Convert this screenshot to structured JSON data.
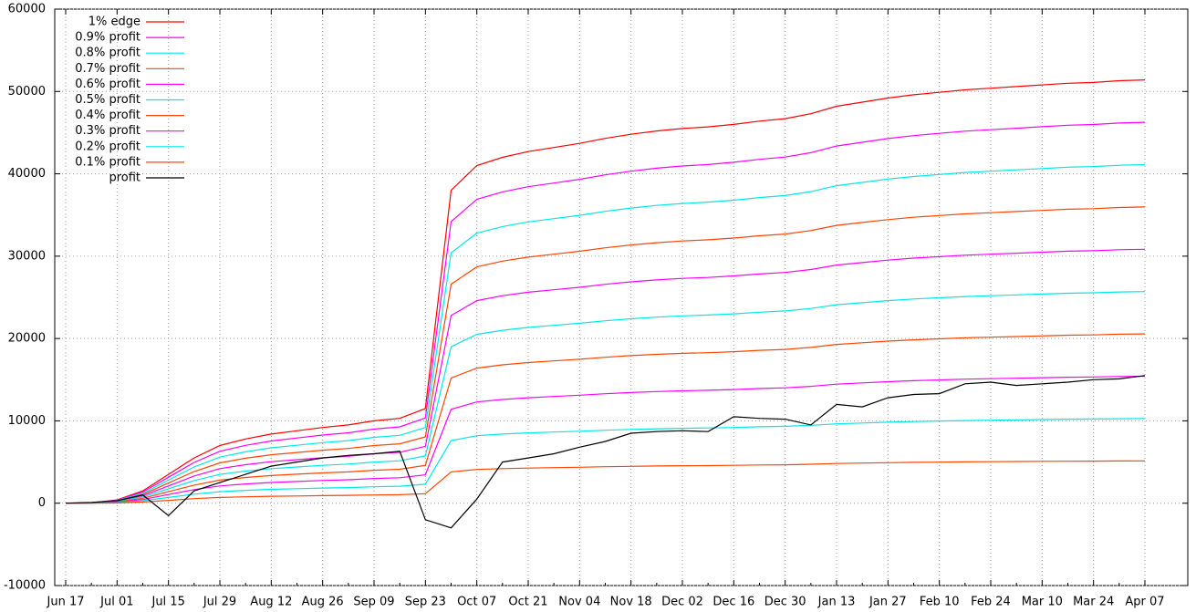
{
  "chart_data": {
    "type": "line",
    "categories": [
      "Jun 17",
      null,
      "Jul 01",
      null,
      "Jul 15",
      null,
      "Jul 29",
      null,
      "Aug 12",
      null,
      "Aug 26",
      null,
      "Sep 09",
      null,
      "Sep 23",
      null,
      "Oct 07",
      null,
      "Oct 21",
      null,
      "Nov 04",
      null,
      "Nov 18",
      null,
      "Dec 02",
      null,
      "Dec 16",
      null,
      "Dec 30",
      null,
      "Jan 13",
      null,
      "Jan 27",
      null,
      "Feb 10",
      null,
      "Feb 24",
      null,
      "Mar 10",
      null,
      "Mar 24",
      null,
      "Apr 07"
    ],
    "ylim": [
      -10000,
      60000
    ],
    "yticks": [
      -10000,
      0,
      10000,
      20000,
      30000,
      40000,
      50000,
      60000
    ],
    "grid": true,
    "legend": "top-left",
    "series": [
      {
        "name": "1% edge",
        "color": "#ff0000",
        "values": [
          0,
          50,
          400,
          1500,
          3500,
          5500,
          7000,
          7800,
          8400,
          8800,
          9200,
          9500,
          10000,
          10300,
          11500,
          38000,
          41000,
          42000,
          42700,
          43200,
          43700,
          44300,
          44800,
          45200,
          45500,
          45700,
          46000,
          46400,
          46700,
          47300,
          48200,
          48700,
          49200,
          49600,
          49900,
          50200,
          50400,
          50600,
          50800,
          51000,
          51100,
          51300,
          51400
        ]
      },
      {
        "name": "0.9% profit",
        "color": "#ff00ff",
        "values": [
          0,
          45,
          360,
          1350,
          3150,
          4950,
          6300,
          7020,
          7560,
          7920,
          8280,
          8550,
          9000,
          9270,
          10350,
          34200,
          36900,
          37800,
          38430,
          38880,
          39330,
          39870,
          40320,
          40680,
          40950,
          41130,
          41400,
          41760,
          42030,
          42570,
          43380,
          43830,
          44280,
          44640,
          44910,
          45180,
          45360,
          45540,
          45720,
          45900,
          45990,
          46170,
          46260
        ]
      },
      {
        "name": "0.8% profit",
        "color": "#00e8e8",
        "values": [
          0,
          40,
          320,
          1200,
          2800,
          4400,
          5600,
          6240,
          6720,
          7040,
          7360,
          7600,
          8000,
          8240,
          9200,
          30400,
          32800,
          33600,
          34160,
          34560,
          34960,
          35440,
          35840,
          36160,
          36400,
          36560,
          36800,
          37120,
          37360,
          37840,
          38560,
          38960,
          39360,
          39680,
          39920,
          40160,
          40320,
          40480,
          40640,
          40800,
          40880,
          41040,
          41120
        ]
      },
      {
        "name": "0.7% profit",
        "color": "#ff4500",
        "values": [
          0,
          35,
          280,
          1050,
          2450,
          3850,
          4900,
          5460,
          5880,
          6160,
          6440,
          6650,
          7000,
          7210,
          8050,
          26600,
          28700,
          29400,
          29890,
          30240,
          30590,
          31010,
          31360,
          31640,
          31850,
          31990,
          32200,
          32480,
          32690,
          33110,
          33740,
          34090,
          34440,
          34720,
          34930,
          35140,
          35280,
          35420,
          35560,
          35700,
          35770,
          35910,
          35980
        ]
      },
      {
        "name": "0.6% profit",
        "color": "#ff00ff",
        "values": [
          0,
          30,
          240,
          900,
          2100,
          3300,
          4200,
          4680,
          5040,
          5280,
          5520,
          5700,
          6000,
          6180,
          6900,
          22800,
          24600,
          25200,
          25620,
          25920,
          26220,
          26580,
          26880,
          27120,
          27300,
          27420,
          27600,
          27840,
          28020,
          28380,
          28920,
          29220,
          29520,
          29760,
          29940,
          30120,
          30240,
          30360,
          30480,
          30600,
          30660,
          30780,
          30840
        ]
      },
      {
        "name": "0.5% profit",
        "color": "#00e8e8",
        "values": [
          0,
          25,
          200,
          750,
          1750,
          2750,
          3500,
          3900,
          4200,
          4400,
          4600,
          4750,
          5000,
          5150,
          5750,
          19000,
          20500,
          21000,
          21350,
          21600,
          21850,
          22150,
          22400,
          22600,
          22750,
          22850,
          23000,
          23200,
          23350,
          23650,
          24100,
          24350,
          24600,
          24800,
          24950,
          25100,
          25200,
          25300,
          25400,
          25500,
          25550,
          25650,
          25700
        ]
      },
      {
        "name": "0.4% profit",
        "color": "#ff4500",
        "values": [
          0,
          20,
          160,
          600,
          1400,
          2200,
          2800,
          3120,
          3360,
          3520,
          3680,
          3800,
          4000,
          4120,
          4600,
          15200,
          16400,
          16800,
          17080,
          17280,
          17480,
          17720,
          17920,
          18080,
          18200,
          18280,
          18400,
          18560,
          18680,
          18920,
          19280,
          19480,
          19680,
          19840,
          19960,
          20080,
          20160,
          20240,
          20320,
          20400,
          20440,
          20520,
          20560
        ]
      },
      {
        "name": "0.3% profit",
        "color": "#ff00ff",
        "values": [
          0,
          15,
          120,
          450,
          1050,
          1650,
          2100,
          2340,
          2520,
          2640,
          2760,
          2850,
          3000,
          3090,
          3450,
          11400,
          12300,
          12600,
          12810,
          12960,
          13110,
          13290,
          13440,
          13560,
          13650,
          13710,
          13800,
          13920,
          14010,
          14190,
          14460,
          14610,
          14760,
          14880,
          14970,
          15060,
          15120,
          15180,
          15240,
          15300,
          15330,
          15390,
          15420
        ]
      },
      {
        "name": "0.2% profit",
        "color": "#00e8e8",
        "values": [
          0,
          10,
          80,
          300,
          700,
          1100,
          1400,
          1560,
          1680,
          1760,
          1840,
          1900,
          2000,
          2060,
          2300,
          7600,
          8200,
          8400,
          8540,
          8640,
          8740,
          8860,
          8960,
          9040,
          9100,
          9140,
          9200,
          9280,
          9340,
          9460,
          9640,
          9740,
          9840,
          9920,
          9980,
          10040,
          10080,
          10120,
          10160,
          10200,
          10220,
          10260,
          10280
        ]
      },
      {
        "name": "0.1% profit",
        "color": "#ff4500",
        "values": [
          0,
          5,
          40,
          150,
          350,
          550,
          700,
          780,
          840,
          880,
          920,
          950,
          1000,
          1030,
          1150,
          3800,
          4100,
          4200,
          4270,
          4320,
          4370,
          4430,
          4480,
          4520,
          4550,
          4570,
          4600,
          4640,
          4670,
          4730,
          4820,
          4870,
          4920,
          4960,
          4990,
          5020,
          5040,
          5060,
          5080,
          5100,
          5110,
          5130,
          5140
        ]
      },
      {
        "name": "profit",
        "color": "#000000",
        "values": [
          0,
          100,
          300,
          1000,
          -1500,
          1500,
          2500,
          3500,
          4500,
          5000,
          5500,
          5800,
          6000,
          6300,
          -2000,
          -3000,
          500,
          5000,
          5500,
          6000,
          6800,
          7500,
          8500,
          8700,
          8800,
          8700,
          10500,
          10300,
          10200,
          9500,
          12000,
          11700,
          12800,
          13200,
          13300,
          14500,
          14700,
          14300,
          14500,
          14700,
          15000,
          15100,
          15500
        ]
      }
    ]
  }
}
